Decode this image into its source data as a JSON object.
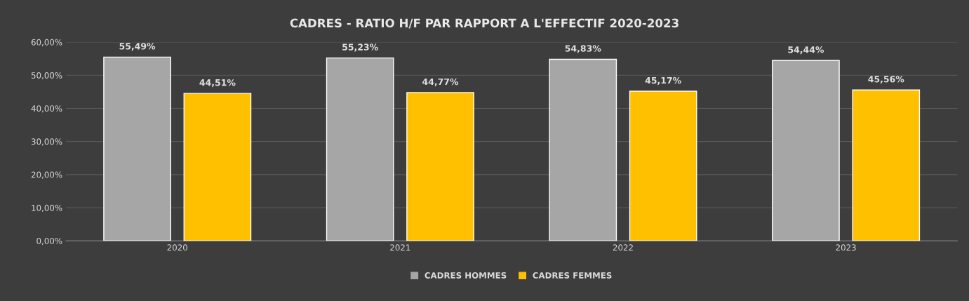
{
  "chart_data": {
    "type": "bar",
    "title": "CADRES - RATIO H/F PAR RAPPORT A L'EFFECTIF 2020-2023",
    "categories": [
      "2020",
      "2021",
      "2022",
      "2023"
    ],
    "series": [
      {
        "name": "CADRES HOMMES",
        "color": "#a6a6a6",
        "values": [
          55.49,
          55.23,
          54.83,
          54.44
        ],
        "value_labels": [
          "55,49%",
          "55,23%",
          "54,83%",
          "54,44%"
        ]
      },
      {
        "name": "CADRES FEMMES",
        "color": "#ffc000",
        "values": [
          44.51,
          44.77,
          45.17,
          45.56
        ],
        "value_labels": [
          "44,51%",
          "44,77%",
          "45,17%",
          "45,56%"
        ]
      }
    ],
    "ylim": [
      0,
      60
    ],
    "yticks": [
      {
        "value": 0,
        "label": "0,00%"
      },
      {
        "value": 10,
        "label": "10,00%"
      },
      {
        "value": 20,
        "label": "20,00%"
      },
      {
        "value": 30,
        "label": "30,00%"
      },
      {
        "value": 40,
        "label": "40,00%"
      },
      {
        "value": 50,
        "label": "50,00%"
      },
      {
        "value": 60,
        "label": "60,00%"
      }
    ],
    "grid": "y",
    "legend": "bottom"
  }
}
